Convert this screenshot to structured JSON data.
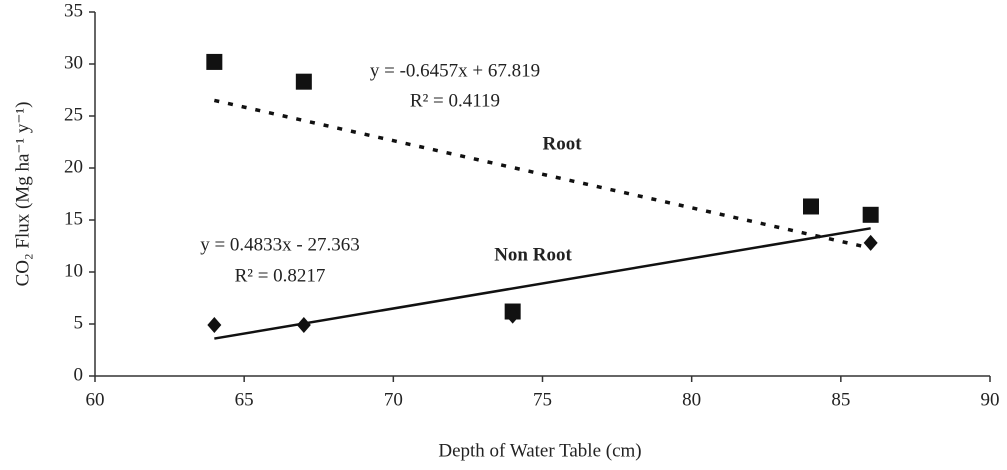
{
  "chart_data": {
    "type": "scatter",
    "x_label": "Depth of Water Table (cm)",
    "y_label": "CO₂ Flux (Mg ha⁻¹ y⁻¹)",
    "xlim": [
      60,
      90
    ],
    "xticks": [
      60,
      65,
      70,
      75,
      80,
      85,
      90
    ],
    "ylim": [
      0,
      35
    ],
    "yticks": [
      0,
      5,
      10,
      15,
      20,
      25,
      30,
      35
    ],
    "series": [
      {
        "name": "Root",
        "color": "#111111",
        "marker": "square",
        "x": [
          64,
          67,
          74,
          84,
          86
        ],
        "values": [
          30.2,
          28.3,
          6.2,
          16.3,
          15.5
        ],
        "trendline": {
          "x": [
            64,
            86
          ],
          "values": [
            26.5,
            12.3
          ],
          "style": "dotted"
        }
      },
      {
        "name": "Non Root",
        "color": "#111111",
        "marker": "diamond",
        "x": [
          64,
          67,
          74,
          86
        ],
        "values": [
          4.9,
          4.9,
          5.8,
          12.8
        ],
        "trendline": {
          "x": [
            64,
            86
          ],
          "values": [
            3.6,
            14.2
          ],
          "style": "solid"
        }
      }
    ],
    "annotations": [
      "y = -0.6457x + 67.819",
      "R² = 0.4119",
      "y = 0.4833x - 27.363",
      "R² = 0.8217"
    ]
  }
}
